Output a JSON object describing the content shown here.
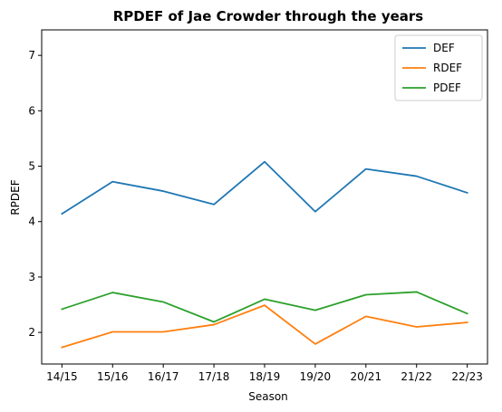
{
  "chart_data": {
    "type": "line",
    "title": "RPDEF of Jae Crowder through the years",
    "xlabel": "Season",
    "ylabel": "RPDEF",
    "categories": [
      "14/15",
      "15/16",
      "16/17",
      "17/18",
      "18/19",
      "19/20",
      "20/21",
      "21/22",
      "22/23"
    ],
    "series": [
      {
        "name": "DEF",
        "color": "#1f77b4",
        "values": [
          4.14,
          4.72,
          4.55,
          4.31,
          5.08,
          4.18,
          4.95,
          4.82,
          4.52
        ]
      },
      {
        "name": "RDEF",
        "color": "#ff7f0e",
        "values": [
          1.73,
          2.01,
          2.01,
          2.14,
          2.49,
          1.79,
          2.29,
          2.1,
          2.18
        ]
      },
      {
        "name": "PDEF",
        "color": "#2ca02c",
        "values": [
          2.42,
          2.72,
          2.55,
          2.19,
          2.6,
          2.4,
          2.68,
          2.73,
          2.34
        ]
      }
    ],
    "ylim": [
      1.43,
      7.46
    ],
    "yticks": [
      2,
      3,
      4,
      5,
      6,
      7
    ],
    "grid": false,
    "legend_position": "top-right"
  }
}
